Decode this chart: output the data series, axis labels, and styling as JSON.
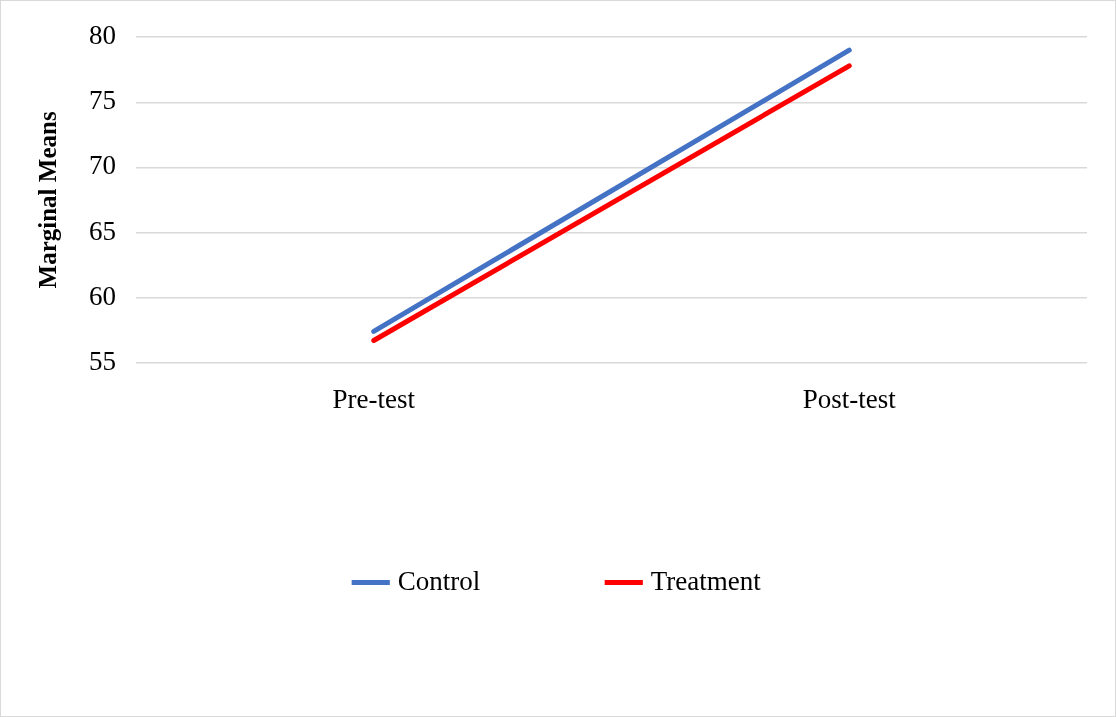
{
  "chart_data": {
    "type": "line",
    "ylabel": "Marginal Means",
    "categories": [
      "Pre-test",
      "Post-test"
    ],
    "series": [
      {
        "name": "Control",
        "color": "#4472c4",
        "values": [
          57.4,
          79.0
        ]
      },
      {
        "name": "Treatment",
        "color": "#ff0000",
        "values": [
          56.7,
          77.8
        ]
      }
    ],
    "ylim": [
      55,
      80
    ],
    "yticks": [
      55,
      60,
      65,
      70,
      75,
      80
    ],
    "grid": "y",
    "legend": "bottom",
    "marker": "none",
    "line_style": "solid"
  }
}
